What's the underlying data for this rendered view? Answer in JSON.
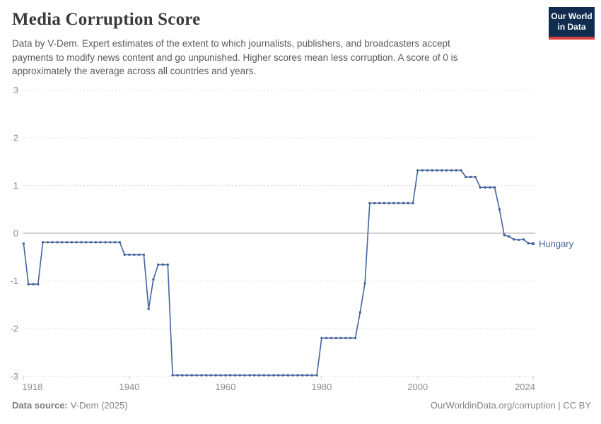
{
  "header": {
    "title": "Media Corruption Score",
    "subtitle_lines": [
      "Data by V-Dem. Expert estimates of the extent to which journalists, publishers, and broadcasters accept",
      "payments to modify news content and go unpunished. Higher scores mean less corruption. A score of 0 is",
      "approximately the average across all countries and years."
    ],
    "logo": {
      "line1": "Our World",
      "line2": "in Data",
      "bg_color": "#102d50",
      "bar_color": "#dc3e42"
    }
  },
  "chart_data": {
    "type": "line",
    "title": "Media Corruption Score",
    "entity": "Hungary",
    "xlabel": "",
    "ylabel": "",
    "xlim": [
      1918,
      2024
    ],
    "ylim": [
      -3,
      3
    ],
    "xticks": [
      1918,
      1940,
      1960,
      1980,
      2000,
      2024
    ],
    "yticks": [
      3,
      2,
      1,
      0,
      -1,
      -2,
      -3
    ],
    "grid": "horizontal-dashed",
    "zero_line": true,
    "legend_position": "end-of-line-label",
    "series": [
      {
        "name": "Hungary",
        "color": "#44639e",
        "points": [
          [
            1918,
            -0.22
          ],
          [
            1919,
            -1.07
          ],
          [
            1920,
            -1.07
          ],
          [
            1921,
            -1.07
          ],
          [
            1922,
            -0.19
          ],
          [
            1923,
            -0.19
          ],
          [
            1924,
            -0.19
          ],
          [
            1925,
            -0.19
          ],
          [
            1926,
            -0.19
          ],
          [
            1927,
            -0.19
          ],
          [
            1928,
            -0.19
          ],
          [
            1929,
            -0.19
          ],
          [
            1930,
            -0.19
          ],
          [
            1931,
            -0.19
          ],
          [
            1932,
            -0.19
          ],
          [
            1933,
            -0.19
          ],
          [
            1934,
            -0.19
          ],
          [
            1935,
            -0.19
          ],
          [
            1936,
            -0.19
          ],
          [
            1937,
            -0.19
          ],
          [
            1938,
            -0.19
          ],
          [
            1939,
            -0.45
          ],
          [
            1940,
            -0.45
          ],
          [
            1941,
            -0.45
          ],
          [
            1942,
            -0.45
          ],
          [
            1943,
            -0.45
          ],
          [
            1944,
            -1.59
          ],
          [
            1945,
            -0.97
          ],
          [
            1946,
            -0.66
          ],
          [
            1947,
            -0.66
          ],
          [
            1948,
            -0.66
          ],
          [
            1949,
            -2.98
          ],
          [
            1950,
            -2.98
          ],
          [
            1951,
            -2.98
          ],
          [
            1952,
            -2.98
          ],
          [
            1953,
            -2.98
          ],
          [
            1954,
            -2.98
          ],
          [
            1955,
            -2.98
          ],
          [
            1956,
            -2.98
          ],
          [
            1957,
            -2.98
          ],
          [
            1958,
            -2.98
          ],
          [
            1959,
            -2.98
          ],
          [
            1960,
            -2.98
          ],
          [
            1961,
            -2.98
          ],
          [
            1962,
            -2.98
          ],
          [
            1963,
            -2.98
          ],
          [
            1964,
            -2.98
          ],
          [
            1965,
            -2.98
          ],
          [
            1966,
            -2.98
          ],
          [
            1967,
            -2.98
          ],
          [
            1968,
            -2.98
          ],
          [
            1969,
            -2.98
          ],
          [
            1970,
            -2.98
          ],
          [
            1971,
            -2.98
          ],
          [
            1972,
            -2.98
          ],
          [
            1973,
            -2.98
          ],
          [
            1974,
            -2.98
          ],
          [
            1975,
            -2.98
          ],
          [
            1976,
            -2.98
          ],
          [
            1977,
            -2.98
          ],
          [
            1978,
            -2.98
          ],
          [
            1979,
            -2.98
          ],
          [
            1980,
            -2.2
          ],
          [
            1981,
            -2.2
          ],
          [
            1982,
            -2.2
          ],
          [
            1983,
            -2.2
          ],
          [
            1984,
            -2.2
          ],
          [
            1985,
            -2.2
          ],
          [
            1986,
            -2.2
          ],
          [
            1987,
            -2.2
          ],
          [
            1988,
            -1.66
          ],
          [
            1989,
            -1.05
          ],
          [
            1990,
            0.63
          ],
          [
            1991,
            0.63
          ],
          [
            1992,
            0.63
          ],
          [
            1993,
            0.63
          ],
          [
            1994,
            0.63
          ],
          [
            1995,
            0.63
          ],
          [
            1996,
            0.63
          ],
          [
            1997,
            0.63
          ],
          [
            1998,
            0.63
          ],
          [
            1999,
            0.63
          ],
          [
            2000,
            1.32
          ],
          [
            2001,
            1.32
          ],
          [
            2002,
            1.32
          ],
          [
            2003,
            1.32
          ],
          [
            2004,
            1.32
          ],
          [
            2005,
            1.32
          ],
          [
            2006,
            1.32
          ],
          [
            2007,
            1.32
          ],
          [
            2008,
            1.32
          ],
          [
            2009,
            1.32
          ],
          [
            2010,
            1.18
          ],
          [
            2011,
            1.18
          ],
          [
            2012,
            1.18
          ],
          [
            2013,
            0.96
          ],
          [
            2014,
            0.96
          ],
          [
            2015,
            0.96
          ],
          [
            2016,
            0.96
          ],
          [
            2017,
            0.5
          ],
          [
            2018,
            -0.04
          ],
          [
            2019,
            -0.07
          ],
          [
            2020,
            -0.13
          ],
          [
            2021,
            -0.14
          ],
          [
            2022,
            -0.13
          ],
          [
            2023,
            -0.21
          ],
          [
            2024,
            -0.22
          ]
        ]
      }
    ]
  },
  "footer": {
    "source_label": "Data source:",
    "source_value": "V-Dem (2025)",
    "link": "OurWorldinData.org/corruption",
    "separator": " | ",
    "license": "CC BY"
  }
}
